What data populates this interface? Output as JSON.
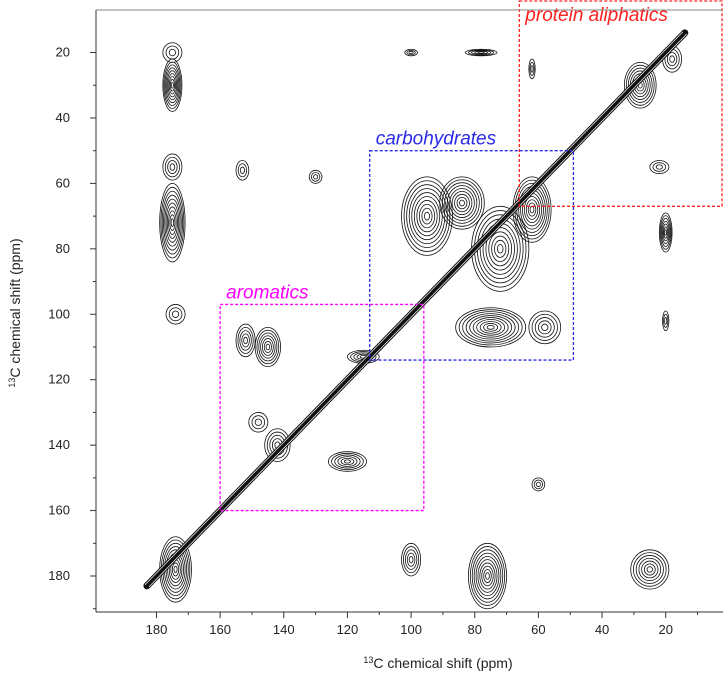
{
  "chart_data": {
    "type": "scatter",
    "subtype": "2D NMR contour spectrum (13C-13C correlation)",
    "xlabel_sup": "13",
    "xlabel": "C chemical shift (ppm)",
    "ylabel_sup": "13",
    "ylabel": "C chemical shift (ppm)",
    "xlim": [
      199,
      2
    ],
    "ylim": [
      7,
      191
    ],
    "x_reversed": true,
    "y_reversed": true,
    "xticks": [
      180,
      160,
      140,
      120,
      100,
      80,
      60,
      40,
      20
    ],
    "yticks": [
      20,
      40,
      60,
      80,
      100,
      120,
      140,
      160,
      180
    ],
    "grid": false,
    "diagonal": {
      "from": [
        183,
        183
      ],
      "to": [
        14,
        14
      ]
    },
    "regions": [
      {
        "label": "protein aliphatics",
        "color": "#ff2020",
        "x": [
          66,
          2
        ],
        "y": [
          3,
          67
        ]
      },
      {
        "label": "carbohydrates",
        "color": "#2a2ae8",
        "x": [
          113,
          49
        ],
        "y": [
          50,
          114
        ]
      },
      {
        "label": "aromatics",
        "color": "#ff00ff",
        "x": [
          160,
          96
        ],
        "y": [
          97,
          160
        ]
      }
    ],
    "peaks": [
      {
        "x": 175,
        "y": 20,
        "rx": 3,
        "ry": 3
      },
      {
        "x": 175,
        "y": 30,
        "rx": 3,
        "ry": 8
      },
      {
        "x": 175,
        "y": 55,
        "rx": 3,
        "ry": 4
      },
      {
        "x": 175,
        "y": 72,
        "rx": 4,
        "ry": 12
      },
      {
        "x": 174,
        "y": 100,
        "rx": 3,
        "ry": 3
      },
      {
        "x": 174,
        "y": 178,
        "rx": 5,
        "ry": 10
      },
      {
        "x": 153,
        "y": 56,
        "rx": 2,
        "ry": 3
      },
      {
        "x": 152,
        "y": 108,
        "rx": 3,
        "ry": 5
      },
      {
        "x": 145,
        "y": 110,
        "rx": 4,
        "ry": 6
      },
      {
        "x": 148,
        "y": 133,
        "rx": 3,
        "ry": 3
      },
      {
        "x": 142,
        "y": 140,
        "rx": 4,
        "ry": 5
      },
      {
        "x": 130,
        "y": 58,
        "rx": 2,
        "ry": 2
      },
      {
        "x": 120,
        "y": 145,
        "rx": 6,
        "ry": 3
      },
      {
        "x": 115,
        "y": 113,
        "rx": 5,
        "ry": 2
      },
      {
        "x": 100,
        "y": 20,
        "rx": 2,
        "ry": 1
      },
      {
        "x": 100,
        "y": 175,
        "rx": 3,
        "ry": 5
      },
      {
        "x": 78,
        "y": 20,
        "rx": 5,
        "ry": 1
      },
      {
        "x": 95,
        "y": 70,
        "rx": 8,
        "ry": 12
      },
      {
        "x": 84,
        "y": 66,
        "rx": 7,
        "ry": 8
      },
      {
        "x": 72,
        "y": 80,
        "rx": 9,
        "ry": 13
      },
      {
        "x": 62,
        "y": 68,
        "rx": 6,
        "ry": 10
      },
      {
        "x": 75,
        "y": 104,
        "rx": 11,
        "ry": 6
      },
      {
        "x": 58,
        "y": 104,
        "rx": 5,
        "ry": 5
      },
      {
        "x": 76,
        "y": 180,
        "rx": 6,
        "ry": 10
      },
      {
        "x": 62,
        "y": 25,
        "rx": 1,
        "ry": 3
      },
      {
        "x": 60,
        "y": 152,
        "rx": 2,
        "ry": 2
      },
      {
        "x": 28,
        "y": 30,
        "rx": 5,
        "ry": 7
      },
      {
        "x": 18,
        "y": 22,
        "rx": 3,
        "ry": 4
      },
      {
        "x": 22,
        "y": 55,
        "rx": 3,
        "ry": 2
      },
      {
        "x": 20,
        "y": 75,
        "rx": 2,
        "ry": 6
      },
      {
        "x": 20,
        "y": 102,
        "rx": 1,
        "ry": 3
      },
      {
        "x": 25,
        "y": 178,
        "rx": 6,
        "ry": 6
      }
    ]
  }
}
